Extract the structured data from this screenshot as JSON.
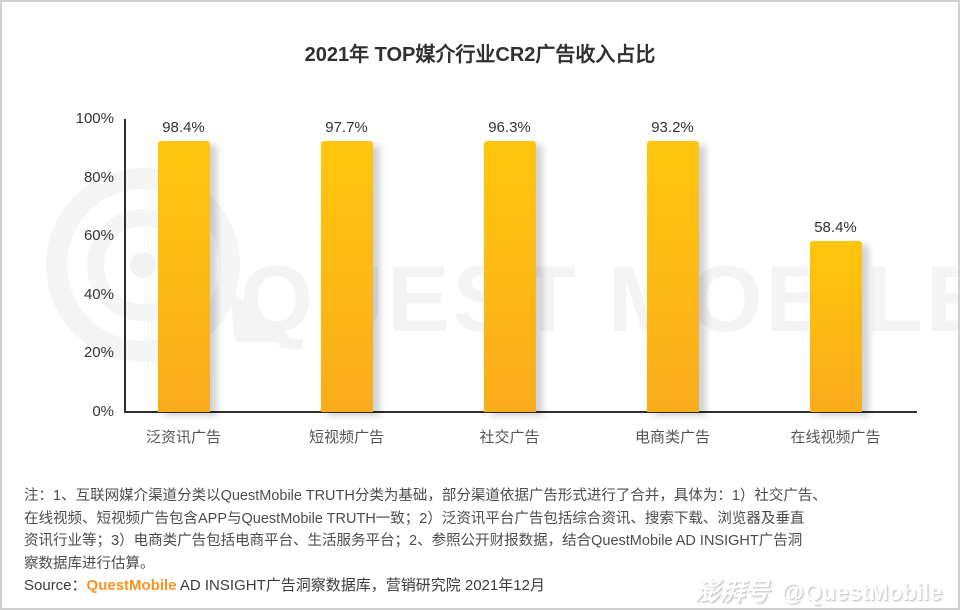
{
  "title": "2021年 TOP媒介行业CR2广告收入占比",
  "chart_data": {
    "type": "bar",
    "categories": [
      "泛资讯广告",
      "短视频广告",
      "社交广告",
      "电商类广告",
      "在线视频广告"
    ],
    "values": [
      98.4,
      97.7,
      96.3,
      93.2,
      58.4
    ],
    "value_labels": [
      "98.4%",
      "97.7%",
      "96.3%",
      "93.2%",
      "58.4%"
    ],
    "y_ticks": [
      "100%",
      "80%",
      "60%",
      "40%",
      "20%",
      "0%"
    ],
    "ylim": [
      0,
      100
    ],
    "xlabel": "",
    "ylabel": "",
    "grid": false,
    "legend_position": "none",
    "bar_color_top": "#FFC60D",
    "bar_color_bottom": "#FAAC1C"
  },
  "notes": {
    "lines": [
      "注：1、互联网媒介渠道分类以QuestMobile TRUTH分类为基础，部分渠道依据广告形式进行了合并，具体为：1）社交广告、",
      "在线视频、短视频广告包含APP与QuestMobile TRUTH一致；2）泛资讯平台广告包括综合资讯、搜索下载、浏览器及垂直",
      "资讯行业等；3）电商类广告包括电商平台、生活服务平台；2、参照公开财报数据，结合QuestMobile AD INSIGHT广告洞",
      "察数据库进行估算。"
    ]
  },
  "source": {
    "prefix": "Source：",
    "brand": "QuestMobile",
    "rest": " AD INSIGHT广告洞察数据库，营销研究院 2021年12月",
    "brand_color": "#F7941E"
  },
  "watermark": {
    "center_text": "QUEST MOBILE",
    "logo": "questmobile-target-logo",
    "badge": "澎湃号",
    "handle": "@QuestMobile"
  }
}
